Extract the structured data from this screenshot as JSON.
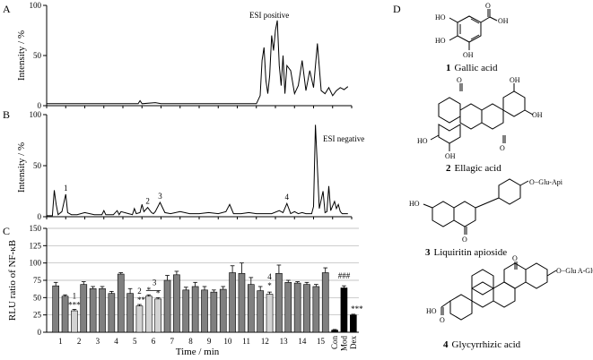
{
  "chart_data": [
    {
      "type": "line",
      "panel_label": "A",
      "annotation": "ESI positive",
      "ylabel": "Intensity / %",
      "y_ticks": [
        "0",
        "50",
        "100"
      ],
      "ylim": [
        0,
        100
      ],
      "xlim": [
        0,
        16
      ],
      "grid": false,
      "x": [
        0,
        1,
        2,
        3,
        4,
        4.8,
        4.9,
        5,
        5.7,
        6,
        7,
        8,
        9,
        10,
        11,
        11.2,
        11.3,
        11.4,
        11.5,
        11.6,
        11.7,
        11.8,
        11.9,
        12,
        12.1,
        12.2,
        12.3,
        12.4,
        12.5,
        12.6,
        12.8,
        13,
        13.2,
        13.4,
        13.6,
        13.8,
        14,
        14.2,
        14.4,
        14.6,
        14.8,
        15,
        15.2,
        15.4,
        15.6,
        15.8
      ],
      "y": [
        2,
        2,
        2,
        2,
        2,
        2,
        5,
        2,
        3,
        2,
        2,
        2,
        2,
        2,
        2,
        10,
        45,
        58,
        25,
        12,
        30,
        70,
        55,
        75,
        85,
        40,
        20,
        50,
        12,
        40,
        35,
        12,
        20,
        45,
        15,
        35,
        18,
        62,
        15,
        12,
        18,
        10,
        15,
        18,
        16,
        19
      ]
    },
    {
      "type": "line",
      "panel_label": "B",
      "annotation": "ESI negative",
      "ylabel": "Intensity / %",
      "y_ticks": [
        "0",
        "50",
        "100"
      ],
      "ylim": [
        0,
        100
      ],
      "xlim": [
        0,
        16
      ],
      "grid": false,
      "peak_labels": [
        {
          "text": "1",
          "x": 1.0,
          "y": 22
        },
        {
          "text": "2",
          "x": 5.3,
          "y": 9
        },
        {
          "text": "3",
          "x": 5.95,
          "y": 14
        },
        {
          "text": "4",
          "x": 12.6,
          "y": 13
        }
      ],
      "x": [
        0,
        0.3,
        0.4,
        0.5,
        0.6,
        0.8,
        1.0,
        1.1,
        1.3,
        1.6,
        2.0,
        2.5,
        2.9,
        3.0,
        3.1,
        3.5,
        3.7,
        3.8,
        3.9,
        4.3,
        4.5,
        4.6,
        4.7,
        4.9,
        5.0,
        5.1,
        5.3,
        5.5,
        5.6,
        5.7,
        5.95,
        6.2,
        6.5,
        7.0,
        7.5,
        8.0,
        8.5,
        9.0,
        9.4,
        9.6,
        9.8,
        10.2,
        10.6,
        11.0,
        11.4,
        11.8,
        12.2,
        12.4,
        12.6,
        12.8,
        13.0,
        13.2,
        13.4,
        13.6,
        13.9,
        14.0,
        14.1,
        14.3,
        14.5,
        14.6,
        14.7,
        14.8,
        14.9,
        15.1,
        15.2,
        15.3,
        15.4,
        15.5,
        15.8
      ],
      "y": [
        1,
        1,
        26,
        12,
        2,
        5,
        22,
        4,
        2,
        2,
        4,
        2,
        2,
        6,
        2,
        2,
        6,
        2,
        5,
        3,
        2,
        8,
        3,
        4,
        12,
        5,
        9,
        4,
        3,
        5,
        14,
        4,
        3,
        5,
        3,
        3,
        4,
        3,
        5,
        12,
        3,
        3,
        4,
        3,
        3,
        3,
        6,
        4,
        13,
        3,
        5,
        3,
        4,
        3,
        3,
        10,
        90,
        8,
        25,
        4,
        5,
        30,
        6,
        15,
        8,
        12,
        5,
        3,
        3
      ]
    },
    {
      "type": "bar",
      "panel_label": "C",
      "ylabel": "RLU ratio of NF-κB",
      "xlabel": "Time / min",
      "y_ticks": [
        "0",
        "25",
        "50",
        "75",
        "100",
        "125",
        "150"
      ],
      "ylim": [
        0,
        150
      ],
      "grid": true,
      "x_tick_labels": [
        "1",
        "2",
        "3",
        "4",
        "5",
        "6",
        "7",
        "8",
        "9",
        "10",
        "11",
        "12",
        "13",
        "14",
        "15",
        "Con",
        "Mod",
        "Dex"
      ],
      "values": [
        67,
        52,
        31,
        69,
        63,
        63,
        56,
        84,
        56,
        38,
        52,
        48,
        75,
        83,
        61,
        66,
        61,
        58,
        62,
        86,
        85,
        69,
        60,
        55,
        85,
        72,
        71,
        69,
        66,
        86,
        3,
        64,
        25
      ],
      "errors": [
        5,
        2,
        2,
        4,
        3,
        3,
        3,
        2,
        7,
        2,
        2,
        2,
        7,
        5,
        4,
        6,
        5,
        3,
        4,
        10,
        15,
        10,
        6,
        3,
        12,
        3,
        2,
        3,
        3,
        7,
        1,
        3,
        1
      ],
      "bar_colors": [
        "#808080",
        "#808080",
        "#d3d3d3",
        "#808080",
        "#808080",
        "#808080",
        "#808080",
        "#808080",
        "#808080",
        "#d3d3d3",
        "#d3d3d3",
        "#d3d3d3",
        "#808080",
        "#808080",
        "#808080",
        "#808080",
        "#808080",
        "#808080",
        "#808080",
        "#808080",
        "#808080",
        "#808080",
        "#808080",
        "#d3d3d3",
        "#808080",
        "#808080",
        "#808080",
        "#808080",
        "#808080",
        "#808080",
        "#000000",
        "#000000",
        "#000000"
      ],
      "annotations": [
        "1",
        "***",
        "2",
        "**",
        "3",
        "*",
        "*",
        "4",
        "*",
        "###",
        "***"
      ]
    }
  ],
  "panels": {
    "a_letter": "A",
    "b_letter": "B",
    "c_letter": "C",
    "d_letter": "D",
    "a_annotation": "ESI positive",
    "b_annotation": "ESI negative"
  },
  "compounds": [
    {
      "number": "1",
      "name": "Gallic acid"
    },
    {
      "number": "2",
      "name": "Ellagic acid"
    },
    {
      "number": "3",
      "name": "Liquiritin apioside"
    },
    {
      "number": "4",
      "name": "Glycyrrhizic acid"
    }
  ],
  "structure_labels": {
    "ho": "HO",
    "oh": "OH",
    "o": "O",
    "cooh_ho": "HO",
    "glu_api": "O−Glu-Api",
    "glu_a": "O−Glu A-Glu A"
  }
}
